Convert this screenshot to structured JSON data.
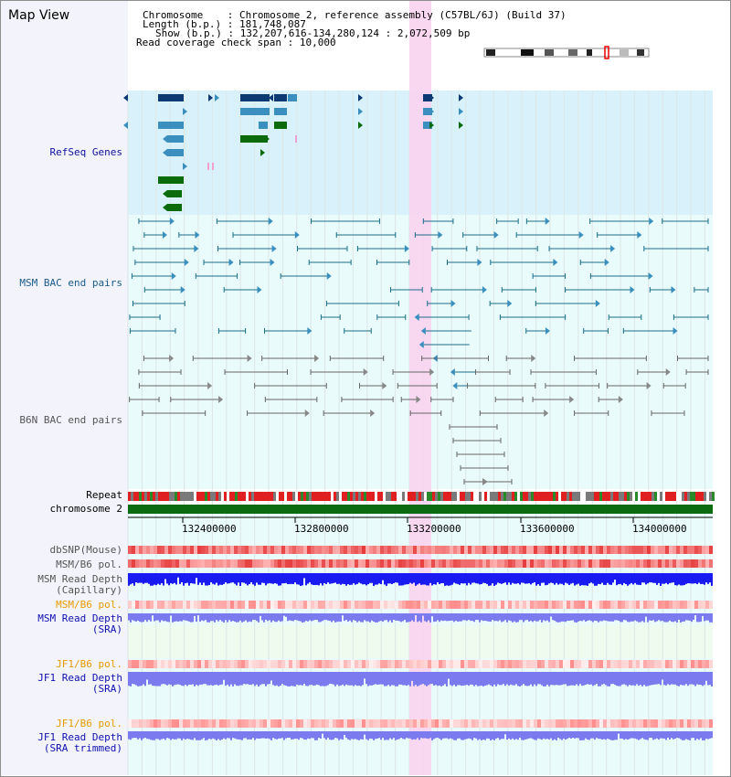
{
  "title": "Map View",
  "info": {
    "chromosome_key": "Chromosome",
    "chromosome_val": "Chromosome 2, reference assembly (C57BL/6J) (Build 37)",
    "length_key": "Length (b.p.)",
    "length_val": "181,748,087",
    "show_key": "Show (b.p.)",
    "show_val": "132,207,616-134,280,124 : 2,072,509 bp",
    "span_key": "Read coverage check span",
    "span_val": "10,000"
  },
  "tracks": {
    "refseq": "RefSeq Genes",
    "msm_bac": "MSM BAC end pairs",
    "b6n_bac": "B6N BAC end pairs",
    "repeat": "Repeat",
    "chromosome": "chromosome 2",
    "dbsnp": "dbSNP(Mouse)",
    "msm_b6_pol": "MSM/B6 pol.",
    "msm_depth_cap_1": "MSM Read Depth",
    "msm_depth_cap_2": "(Capillary)",
    "msm_b6_pol_sra": "MSM/B6 pol.",
    "msm_depth_sra_1": "MSM Read Depth",
    "msm_depth_sra_2": "(SRA)",
    "jf1_b6_pol": "JF1/B6 pol.",
    "jf1_depth_1": "JF1 Read Depth",
    "jf1_depth_2": "(SRA)",
    "jf1_b6_pol_trim": "JF1/B6 pol.",
    "jf1_trim_1": "JF1 Read Depth",
    "jf1_trim_2": "(SRA trimmed)"
  },
  "axis_ticks": [
    "132400000",
    "132800000",
    "133200000",
    "133600000",
    "134000000"
  ],
  "colors": {
    "refseq_bg": "#d9f1fb",
    "pair_bg": "#e9fbfb",
    "highlight": "#f9d3ef",
    "gene_dark": "#0d3a73",
    "gene_mid": "#3a8fbf",
    "gene_green": "#0b6b0b",
    "msm_line": "#1a6e8a",
    "b6n_line": "#666666",
    "chrom_green": "#0a6b10",
    "depth_blue": "#1a1af2",
    "depth_light": "#7b7bef",
    "label_orange": "#e69b00",
    "label_blue": "#1010b0"
  }
}
